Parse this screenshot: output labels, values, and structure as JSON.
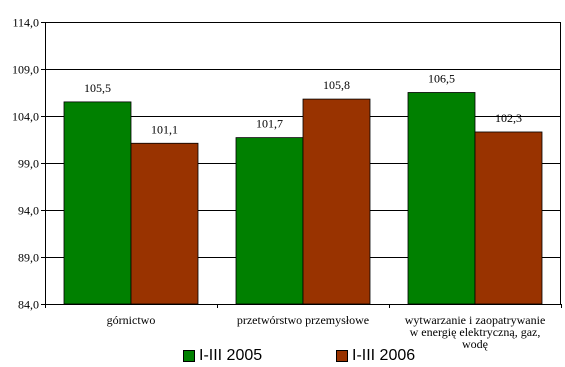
{
  "chart_data": {
    "type": "bar",
    "categories": [
      "górnictwo",
      "przetwórstwo przemysłowe",
      "wytwarzanie i zaopatrywanie w energię elektryczną, gaz, wodę"
    ],
    "series": [
      {
        "name": "I-III 2005",
        "color": "#008000",
        "values": [
          105.5,
          101.7,
          106.5
        ],
        "labels": [
          "105,5",
          "101,7",
          "106,5"
        ]
      },
      {
        "name": "I-III 2006",
        "color": "#993300",
        "values": [
          101.1,
          105.8,
          102.3
        ],
        "labels": [
          "101,1",
          "105,8",
          "102,3"
        ]
      }
    ],
    "ylim": [
      84,
      114
    ],
    "yticks": [
      84,
      89,
      94,
      99,
      104,
      109,
      114
    ],
    "ytick_labels": [
      "84,0",
      "89,0",
      "94,0",
      "99,0",
      "104,0",
      "109,0",
      "114,0"
    ],
    "grid": true,
    "legend_position": "bottom"
  }
}
